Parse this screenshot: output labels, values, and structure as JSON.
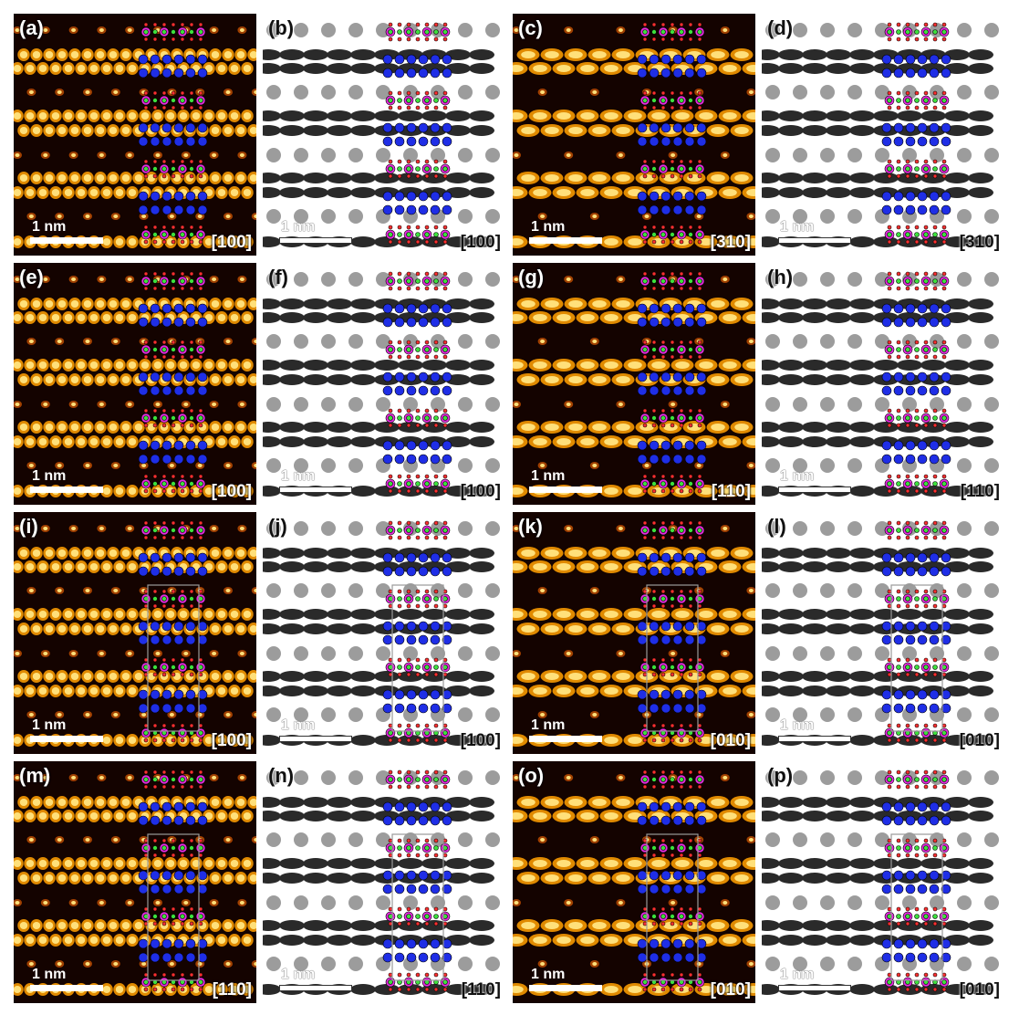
{
  "figure": {
    "colors": {
      "haadf_background": "#140300",
      "haadf_bright": "#ffe07a",
      "haadf_mid": "#e08a00",
      "abf_background": "#ffffff",
      "abf_dark": "#0c0c0c",
      "atom_blue": "#1f2ee6",
      "atom_magenta": "#e62ce0",
      "atom_green": "#3ce03c",
      "atom_red": "#ff3030",
      "atom_tan": "#d9a066",
      "cell_outline": "#9a9a9a"
    },
    "panels": [
      {
        "label": "(a)",
        "zone": "[100]",
        "scale": "1 nm",
        "style": "haadf",
        "zone_bar": false
      },
      {
        "label": "(b)",
        "zone": "[100]",
        "scale": "1 nm",
        "style": "abf",
        "zone_bar": false
      },
      {
        "label": "(c)",
        "zone": "[310]",
        "scale": "1 nm",
        "style": "haadf",
        "zone_bar": false
      },
      {
        "label": "(d)",
        "zone": "[310]",
        "scale": "1 nm",
        "style": "abf",
        "zone_bar": false
      },
      {
        "label": "(e)",
        "zone": "[100]",
        "scale": "1 nm",
        "style": "haadf",
        "zone_bar": false
      },
      {
        "label": "(f)",
        "zone": "[100]",
        "scale": "1 nm",
        "style": "abf",
        "zone_bar": false
      },
      {
        "label": "(g)",
        "zone": "[110]",
        "scale": "1 nm",
        "style": "haadf",
        "zone_bar": true
      },
      {
        "label": "(h)",
        "zone": "[110]",
        "scale": "1 nm",
        "style": "abf",
        "zone_bar": true
      },
      {
        "label": "(i)",
        "zone": "[100]",
        "scale": "1 nm",
        "style": "haadf",
        "zone_bar": false
      },
      {
        "label": "(j)",
        "zone": "[100]",
        "scale": "1 nm",
        "style": "abf",
        "zone_bar": false
      },
      {
        "label": "(k)",
        "zone": "[010]",
        "scale": "1 nm",
        "style": "haadf",
        "zone_bar": false
      },
      {
        "label": "(l)",
        "zone": "[010]",
        "scale": "1 nm",
        "style": "abf",
        "zone_bar": false
      },
      {
        "label": "(m)",
        "zone": "[110]",
        "scale": "1 nm",
        "style": "haadf",
        "zone_bar": false
      },
      {
        "label": "(n)",
        "zone": "[110]",
        "scale": "1 nm",
        "style": "abf",
        "zone_bar": false
      },
      {
        "label": "(o)",
        "zone": "[010]",
        "scale": "1 nm",
        "style": "haadf",
        "zone_bar": false
      },
      {
        "label": "(p)",
        "zone": "[010]",
        "scale": "1 nm",
        "style": "abf",
        "zone_bar": false
      }
    ]
  }
}
